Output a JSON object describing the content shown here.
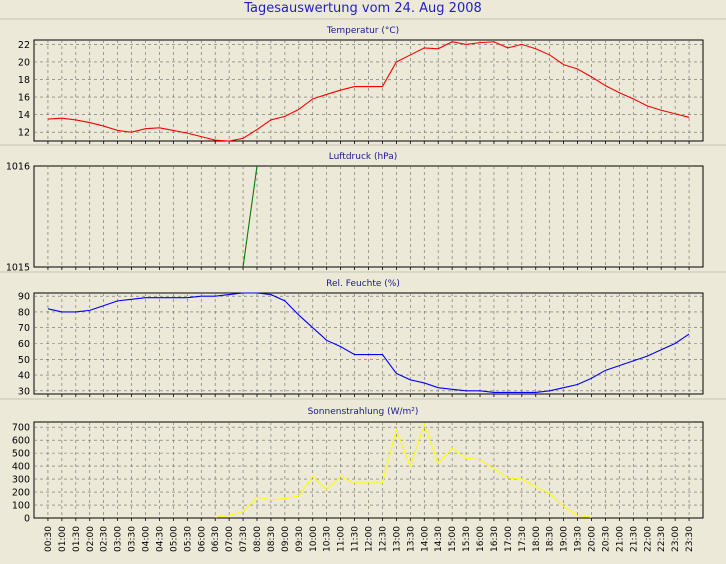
{
  "title": "Tagesauswertung vom 24. Aug 2008",
  "x_tick_labels": [
    "00:30",
    "01:00",
    "01:30",
    "02:00",
    "02:30",
    "03:00",
    "03:30",
    "04:00",
    "04:30",
    "05:00",
    "05:30",
    "06:00",
    "06:30",
    "07:00",
    "07:30",
    "08:00",
    "08:30",
    "09:00",
    "09:30",
    "10:00",
    "10:30",
    "11:00",
    "11:30",
    "12:00",
    "12:30",
    "13:00",
    "13:30",
    "14:00",
    "14:30",
    "15:00",
    "15:30",
    "16:00",
    "16:30",
    "17:00",
    "17:30",
    "18:00",
    "18:30",
    "19:00",
    "19:30",
    "20:00",
    "20:30",
    "21:00",
    "21:30",
    "22:00",
    "22:30",
    "23:00",
    "23:30"
  ],
  "chart_data": [
    {
      "type": "line",
      "title": "Temperatur (°C)",
      "color": "#ff0000",
      "ylim": [
        11,
        22.5
      ],
      "yticks": [
        12,
        14,
        16,
        18,
        20,
        22
      ],
      "ytick_labels": [
        "12",
        "14",
        "16",
        "18",
        "20",
        "22"
      ],
      "grid": true,
      "x": [
        "00:30",
        "01:00",
        "01:30",
        "02:00",
        "02:30",
        "03:00",
        "03:30",
        "04:00",
        "04:30",
        "05:00",
        "05:30",
        "06:00",
        "06:30",
        "07:00",
        "07:30",
        "08:00",
        "08:30",
        "09:00",
        "09:30",
        "10:00",
        "10:30",
        "11:00",
        "11:30",
        "12:00",
        "12:30",
        "13:00",
        "13:30",
        "14:00",
        "14:30",
        "15:00",
        "15:30",
        "16:00",
        "16:30",
        "17:00",
        "17:30",
        "18:00",
        "18:30",
        "19:00",
        "19:30",
        "20:00",
        "20:30",
        "21:00",
        "21:30",
        "22:00",
        "22:30",
        "23:00",
        "23:30"
      ],
      "y": [
        13.5,
        13.6,
        13.4,
        13.1,
        12.7,
        12.2,
        12.0,
        12.4,
        12.5,
        12.2,
        11.9,
        11.5,
        11.1,
        11.0,
        11.3,
        12.3,
        13.4,
        13.8,
        14.6,
        15.8,
        16.3,
        16.8,
        17.2,
        17.2,
        17.2,
        20.0,
        20.8,
        21.6,
        21.5,
        22.3,
        22.0,
        22.2,
        22.3,
        21.6,
        22.0,
        21.5,
        20.8,
        19.7,
        19.2,
        18.3,
        17.3,
        16.5,
        15.8,
        15.0,
        14.5,
        14.1,
        13.7
      ]
    },
    {
      "type": "line",
      "title": "Luftdruck (hPa)",
      "color": "#008000",
      "ylim": [
        1015,
        1016
      ],
      "yticks": [
        1015,
        1016
      ],
      "ytick_labels": [
        "1015",
        "1016"
      ],
      "grid": true,
      "x": [
        "07:30",
        "08:00"
      ],
      "y": [
        1015,
        1016
      ]
    },
    {
      "type": "line",
      "title": "Rel. Feuchte (%)",
      "color": "#0000ff",
      "ylim": [
        28,
        92
      ],
      "yticks": [
        30,
        40,
        50,
        60,
        70,
        80,
        90
      ],
      "ytick_labels": [
        "30",
        "40",
        "50",
        "60",
        "70",
        "80",
        "90"
      ],
      "grid": true,
      "x": [
        "00:30",
        "01:00",
        "01:30",
        "02:00",
        "02:30",
        "03:00",
        "03:30",
        "04:00",
        "04:30",
        "05:00",
        "05:30",
        "06:00",
        "06:30",
        "07:00",
        "07:30",
        "08:00",
        "08:30",
        "09:00",
        "09:30",
        "10:00",
        "10:30",
        "11:00",
        "11:30",
        "12:00",
        "12:30",
        "13:00",
        "13:30",
        "14:00",
        "14:30",
        "15:00",
        "15:30",
        "16:00",
        "16:30",
        "17:00",
        "17:30",
        "18:00",
        "18:30",
        "19:00",
        "19:30",
        "20:00",
        "20:30",
        "21:00",
        "21:30",
        "22:00",
        "22:30",
        "23:00",
        "23:30"
      ],
      "y": [
        82,
        80,
        80,
        81,
        84,
        87,
        88,
        89,
        89,
        89,
        89,
        90,
        90,
        91,
        92,
        92,
        91,
        87,
        78,
        70,
        62,
        58,
        53,
        53,
        53,
        41,
        37,
        35,
        32,
        31,
        30,
        30,
        29,
        29,
        29,
        29,
        30,
        32,
        34,
        38,
        43,
        46,
        49,
        52,
        56,
        60,
        66
      ]
    },
    {
      "type": "line",
      "title": "Sonnenstrahlung (W/m²)",
      "color": "#ffff00",
      "ylim": [
        0,
        740
      ],
      "yticks": [
        0,
        100,
        200,
        300,
        400,
        500,
        600,
        700
      ],
      "ytick_labels": [
        "0",
        "100",
        "200",
        "300",
        "400",
        "500",
        "600",
        "700"
      ],
      "grid": true,
      "x": [
        "00:30",
        "01:00",
        "01:30",
        "02:00",
        "02:30",
        "03:00",
        "03:30",
        "04:00",
        "04:30",
        "05:00",
        "05:30",
        "06:00",
        "06:30",
        "07:00",
        "07:30",
        "08:00",
        "08:30",
        "09:00",
        "09:30",
        "10:00",
        "10:30",
        "11:00",
        "11:30",
        "12:00",
        "12:30",
        "13:00",
        "13:30",
        "14:00",
        "14:30",
        "15:00",
        "15:30",
        "16:00",
        "16:30",
        "17:00",
        "17:30",
        "18:00",
        "18:30",
        "19:00",
        "19:30",
        "20:00",
        "20:30",
        "21:00",
        "21:30",
        "22:00",
        "22:30",
        "23:00",
        "23:30"
      ],
      "y": [
        null,
        null,
        null,
        null,
        null,
        null,
        null,
        null,
        null,
        null,
        null,
        null,
        5,
        20,
        50,
        160,
        140,
        150,
        170,
        320,
        220,
        320,
        270,
        270,
        270,
        680,
        400,
        720,
        420,
        540,
        460,
        450,
        380,
        310,
        300,
        240,
        190,
        90,
        20,
        5,
        null,
        null,
        null,
        null,
        null,
        null,
        null
      ]
    }
  ]
}
